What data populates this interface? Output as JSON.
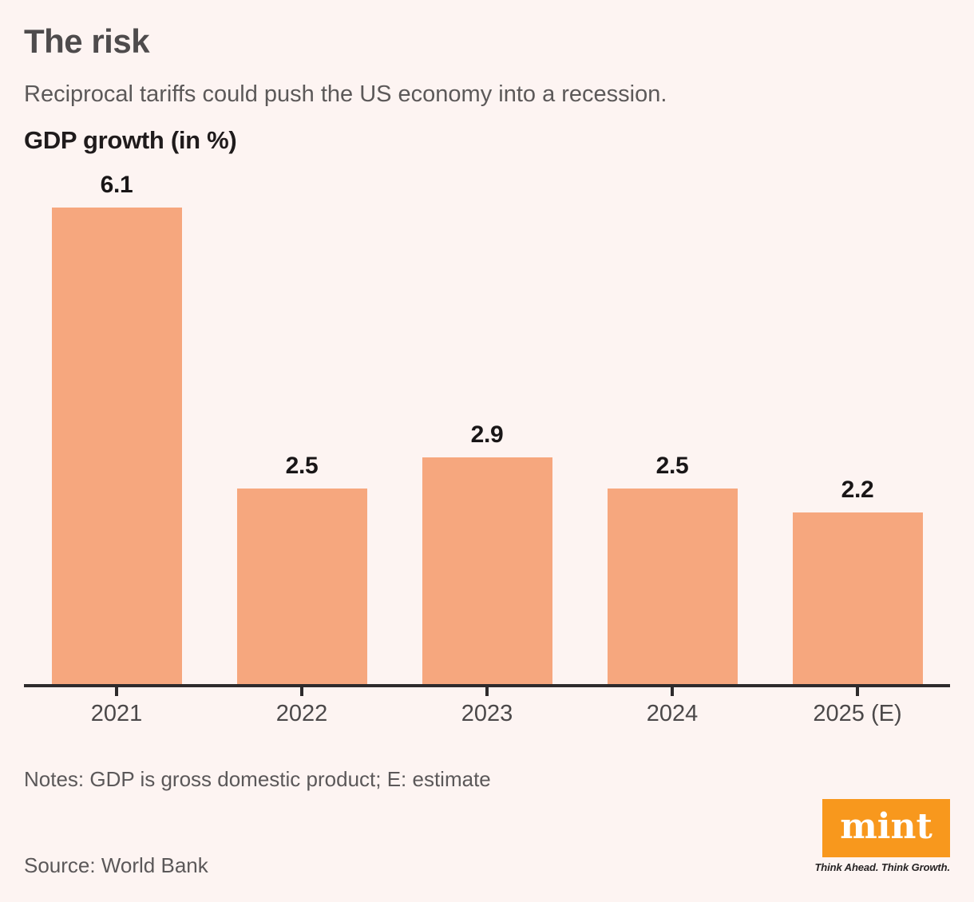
{
  "header": {
    "title": "The risk",
    "subtitle": "Reciprocal tariffs could push the US economy into a recession.",
    "chart_label": "GDP growth (in %)"
  },
  "chart_data": {
    "type": "bar",
    "title": "The risk",
    "subtitle": "Reciprocal tariffs could push the US economy into a recession.",
    "ylabel": "GDP growth (in %)",
    "xlabel": "",
    "categories": [
      "2021",
      "2022",
      "2023",
      "2024",
      "2025 (E)"
    ],
    "values": [
      6.1,
      2.5,
      2.9,
      2.5,
      2.2
    ],
    "value_labels": [
      "6.1",
      "2.5",
      "2.9",
      "2.5",
      "2.2"
    ],
    "ylim": [
      0,
      6.7
    ],
    "grid": false,
    "legend": false,
    "bar_color": "#F6A77E",
    "axis_color": "#2E2B2C"
  },
  "footer": {
    "notes": "Notes: GDP is gross domestic product; E: estimate",
    "source": "Source: World Bank",
    "logo_text": "mint",
    "tagline": "Think Ahead. Think Growth."
  },
  "colors": {
    "background": "#FDF4F2",
    "bar": "#F6A77E",
    "axis": "#2E2B2C",
    "brand_orange": "#F8981D",
    "title_gray": "#4E4B4C"
  }
}
